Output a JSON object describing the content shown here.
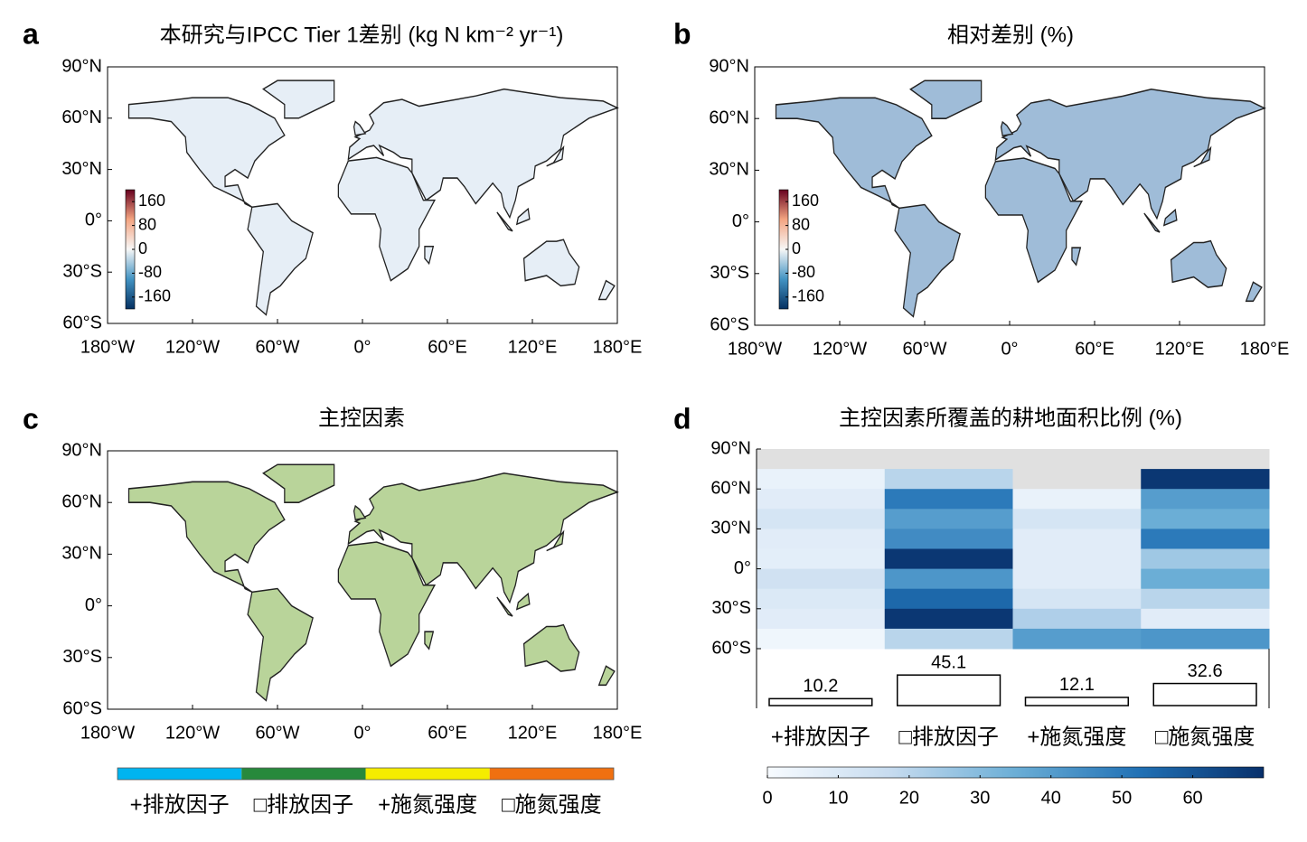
{
  "chart_data": [
    {
      "type": "map",
      "letter": "a",
      "title": "本研究与IPCC Tier 1差别 (kg N km⁻² yr⁻¹)",
      "xlim": [
        -180,
        180
      ],
      "ylim": [
        -60,
        90
      ],
      "xticks": [
        {
          "value": -180,
          "label": "180°W"
        },
        {
          "value": -120,
          "label": "120°W"
        },
        {
          "value": -60,
          "label": "60°W"
        },
        {
          "value": 0,
          "label": "0°"
        },
        {
          "value": 60,
          "label": "60°E"
        },
        {
          "value": 120,
          "label": "120°E"
        },
        {
          "value": 180,
          "label": "180°E"
        }
      ],
      "yticks": [
        {
          "value": 90,
          "label": "90°N"
        },
        {
          "value": 60,
          "label": "60°N"
        },
        {
          "value": 30,
          "label": "30°N"
        },
        {
          "value": 0,
          "label": "0°"
        },
        {
          "value": -30,
          "label": "30°S"
        },
        {
          "value": -60,
          "label": "60°S"
        }
      ],
      "land_color": "#e6eef6",
      "colorbar": {
        "ticks": [
          160,
          80,
          0,
          -80,
          -160
        ],
        "lim": [
          -200,
          200
        ],
        "colors": [
          "#053061",
          "#4393c3",
          "#f7f7f7",
          "#f4a582",
          "#67001f"
        ]
      }
    },
    {
      "type": "map",
      "letter": "b",
      "title": "相对差别 (%)",
      "xlim": [
        -180,
        180
      ],
      "ylim": [
        -60,
        90
      ],
      "xticks": [
        {
          "value": -180,
          "label": "180°W"
        },
        {
          "value": -120,
          "label": "120°W"
        },
        {
          "value": -60,
          "label": "60°W"
        },
        {
          "value": 0,
          "label": "0°"
        },
        {
          "value": 60,
          "label": "60°E"
        },
        {
          "value": 120,
          "label": "120°E"
        },
        {
          "value": 180,
          "label": "180°E"
        }
      ],
      "yticks": [
        {
          "value": 90,
          "label": "90°N"
        },
        {
          "value": 60,
          "label": "60°N"
        },
        {
          "value": 30,
          "label": "30°N"
        },
        {
          "value": 0,
          "label": "0°"
        },
        {
          "value": -30,
          "label": "30°S"
        },
        {
          "value": -60,
          "label": "60°S"
        }
      ],
      "land_color": "#9fbcd8",
      "colorbar": {
        "ticks": [
          160,
          80,
          0,
          -80,
          -160
        ],
        "lim": [
          -200,
          200
        ],
        "colors": [
          "#053061",
          "#4393c3",
          "#f7f7f7",
          "#f4a582",
          "#67001f"
        ]
      }
    },
    {
      "type": "map",
      "letter": "c",
      "title": "主控因素",
      "xlim": [
        -180,
        180
      ],
      "ylim": [
        -60,
        90
      ],
      "xticks": [
        {
          "value": -180,
          "label": "180°W"
        },
        {
          "value": -120,
          "label": "120°W"
        },
        {
          "value": -60,
          "label": "60°W"
        },
        {
          "value": 0,
          "label": "0°"
        },
        {
          "value": 60,
          "label": "60°E"
        },
        {
          "value": 120,
          "label": "120°E"
        },
        {
          "value": 180,
          "label": "180°E"
        }
      ],
      "yticks": [
        {
          "value": 90,
          "label": "90°N"
        },
        {
          "value": 60,
          "label": "60°N"
        },
        {
          "value": 30,
          "label": "30°N"
        },
        {
          "value": 0,
          "label": "0°"
        },
        {
          "value": -30,
          "label": "30°S"
        },
        {
          "value": -60,
          "label": "60°S"
        }
      ],
      "land_color": "#b9d49a",
      "legend": {
        "categories": [
          "+排放因子",
          "□排放因子",
          "+施氮强度",
          "□施氮强度"
        ],
        "colors": [
          "#00b4f0",
          "#27893c",
          "#f5ec00",
          "#f07010"
        ]
      }
    },
    {
      "type": "heatmap",
      "letter": "d",
      "title": "主控因素所覆盖的耕地面积比例 (%)",
      "categories": [
        "+排放因子",
        "□排放因子",
        "+施氮强度",
        "□施氮强度"
      ],
      "ylim": [
        -60,
        90
      ],
      "yticks": [
        {
          "value": 90,
          "label": "90°N"
        },
        {
          "value": 60,
          "label": "60°N"
        },
        {
          "value": 30,
          "label": "30°N"
        },
        {
          "value": 0,
          "label": "0°"
        },
        {
          "value": -30,
          "label": "30°S"
        },
        {
          "value": -60,
          "label": "60°S"
        }
      ],
      "y_bins": [
        90,
        75,
        60,
        45,
        30,
        15,
        0,
        -15,
        -30,
        -45,
        -60
      ],
      "z": [
        [
          null,
          null,
          null,
          null
        ],
        [
          5,
          20,
          null,
          68
        ],
        [
          8,
          50,
          5,
          40
        ],
        [
          12,
          40,
          12,
          35
        ],
        [
          8,
          45,
          8,
          50
        ],
        [
          7,
          68,
          8,
          25
        ],
        [
          14,
          42,
          8,
          35
        ],
        [
          10,
          55,
          12,
          20
        ],
        [
          8,
          68,
          22,
          8
        ],
        [
          3,
          20,
          40,
          42
        ]
      ],
      "missing_color": "#e0e0e0",
      "cmap": [
        "#f7fbff",
        "#c6dbef",
        "#6baed6",
        "#2171b5",
        "#08306b"
      ],
      "clim": [
        0,
        70
      ],
      "cticks": [
        0,
        10,
        20,
        30,
        40,
        50,
        60
      ],
      "bar_values": [
        10.2,
        45.1,
        12.1,
        32.6
      ]
    }
  ]
}
